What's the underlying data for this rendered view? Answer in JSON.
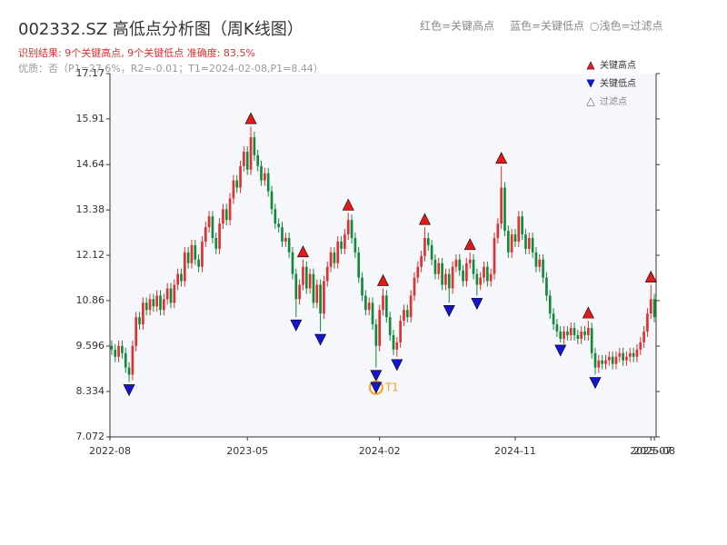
{
  "chart_data": {
    "type": "candlestick",
    "title": "002332.SZ 高低点分析图（周K线图）",
    "result_text": "识别结果: 9个关键高点, 9个关键低点  准确度: 83.5%",
    "subtitle": "优质：否（P1=27.6%，R2=-0.01；T1=2024-02-08,P1=8.44）",
    "header_legend": [
      "红色=关键高点",
      "蓝色=关键低点",
      "○浅色=过滤点"
    ],
    "legend": {
      "position": "upper right",
      "entries": [
        {
          "name": "关键高点",
          "color": "#e31a1c"
        },
        {
          "name": "关键低点",
          "color": "#1515d0"
        },
        {
          "name": "过滤点",
          "color": "#ffffff"
        }
      ]
    },
    "up_color": "#e03030",
    "down_color": "#128a3c",
    "ylim": [
      7.072,
      17.17
    ],
    "yticks": [
      7.072,
      8.334,
      9.596,
      10.86,
      12.12,
      13.38,
      14.64,
      15.91,
      17.17
    ],
    "categories": [
      "2022-08",
      null,
      null,
      null,
      null,
      null,
      null,
      null,
      null,
      null,
      null,
      null,
      null,
      null,
      null,
      null,
      null,
      null,
      null,
      null,
      null,
      null,
      null,
      null,
      null,
      null,
      null,
      null,
      null,
      null,
      null,
      null,
      null,
      null,
      null,
      null,
      null,
      null,
      null,
      "2023-05",
      null,
      null,
      null,
      null,
      null,
      null,
      null,
      null,
      null,
      null,
      null,
      null,
      null,
      null,
      null,
      null,
      null,
      null,
      null,
      null,
      null,
      null,
      null,
      null,
      null,
      null,
      null,
      null,
      null,
      null,
      null,
      null,
      null,
      null,
      null,
      null,
      null,
      "2024-02",
      null,
      null,
      null,
      null,
      null,
      null,
      null,
      null,
      null,
      null,
      null,
      null,
      null,
      null,
      null,
      null,
      null,
      null,
      null,
      null,
      null,
      null,
      null,
      null,
      null,
      null,
      null,
      null,
      null,
      null,
      null,
      null,
      null,
      null,
      null,
      null,
      null,
      null,
      "2024-11",
      null,
      null,
      null,
      null,
      null,
      null,
      null,
      null,
      null,
      null,
      null,
      null,
      null,
      null,
      null,
      null,
      null,
      null,
      null,
      null,
      null,
      null,
      null,
      null,
      null,
      null,
      null,
      null,
      null,
      null,
      null,
      null,
      null,
      null,
      null,
      null,
      null,
      null,
      "2025-07",
      "2025-08"
    ],
    "open": [
      9.6,
      9.5,
      9.3,
      9.6,
      9.4,
      9.0,
      8.8,
      9.6,
      10.4,
      10.2,
      10.8,
      10.6,
      10.9,
      10.7,
      11.0,
      10.6,
      10.9,
      11.2,
      10.8,
      11.3,
      11.6,
      11.4,
      12.2,
      11.9,
      12.4,
      12.0,
      11.8,
      12.5,
      12.9,
      13.2,
      12.6,
      12.3,
      13.0,
      13.4,
      13.1,
      13.7,
      14.2,
      14.0,
      14.6,
      15.0,
      14.5,
      15.4,
      14.9,
      14.6,
      14.2,
      14.4,
      13.9,
      13.4,
      13.0,
      12.9,
      12.5,
      12.6,
      12.2,
      11.6,
      10.9,
      11.3,
      11.8,
      11.2,
      11.6,
      10.8,
      11.3,
      10.5,
      11.4,
      11.8,
      12.2,
      11.9,
      12.5,
      12.3,
      12.7,
      13.1,
      12.6,
      12.2,
      11.5,
      11.0,
      10.6,
      10.8,
      10.2,
      9.6,
      10.6,
      11.0,
      10.4,
      9.9,
      9.5,
      9.7,
      10.3,
      10.6,
      10.4,
      11.0,
      11.5,
      11.8,
      12.1,
      12.6,
      12.4,
      12.0,
      11.6,
      11.9,
      11.3,
      11.6,
      11.2,
      11.8,
      12.0,
      11.7,
      11.4,
      11.9,
      12.0,
      11.6,
      11.3,
      11.5,
      11.8,
      11.4,
      11.6,
      12.6,
      13.0,
      14.0,
      12.8,
      12.2,
      12.7,
      12.5,
      13.2,
      12.7,
      12.3,
      12.6,
      12.2,
      11.8,
      12.0,
      11.5,
      11.0,
      10.5,
      10.2,
      10.0,
      9.8,
      10.0,
      9.9,
      10.1,
      9.9,
      9.8,
      10.0,
      9.9,
      10.1,
      9.4,
      9.0,
      9.2,
      9.1,
      9.2,
      9.3,
      9.1,
      9.3,
      9.4,
      9.2,
      9.3,
      9.4,
      9.3,
      9.5,
      9.7,
      10.0,
      10.5,
      10.9
    ],
    "high": [
      9.75,
      9.65,
      9.75,
      9.75,
      9.55,
      9.15,
      9.75,
      10.55,
      10.55,
      10.95,
      10.95,
      11.05,
      11.05,
      11.15,
      11.15,
      11.05,
      11.35,
      11.35,
      11.45,
      11.75,
      11.75,
      12.35,
      12.35,
      12.55,
      12.55,
      12.15,
      12.65,
      13.05,
      13.35,
      13.35,
      12.75,
      13.15,
      13.55,
      13.55,
      13.85,
      14.35,
      14.35,
      14.75,
      15.15,
      15.15,
      15.7,
      15.55,
      15.05,
      14.75,
      14.55,
      14.55,
      14.05,
      13.55,
      13.15,
      13.05,
      12.75,
      12.75,
      12.35,
      11.75,
      11.45,
      12.0,
      11.95,
      11.75,
      11.75,
      11.45,
      11.45,
      11.55,
      11.95,
      12.35,
      12.35,
      12.65,
      12.65,
      12.85,
      13.3,
      13.25,
      12.75,
      12.35,
      11.65,
      11.15,
      10.95,
      10.95,
      10.35,
      10.75,
      11.2,
      11.15,
      10.55,
      10.05,
      9.85,
      10.45,
      10.75,
      10.75,
      11.15,
      11.65,
      11.95,
      12.25,
      12.9,
      12.75,
      12.55,
      12.15,
      12.05,
      12.05,
      11.75,
      11.75,
      11.95,
      12.15,
      12.15,
      11.85,
      12.05,
      12.2,
      12.15,
      11.75,
      11.65,
      11.95,
      11.95,
      11.75,
      12.75,
      13.15,
      14.6,
      14.15,
      12.95,
      12.85,
      12.85,
      13.35,
      13.35,
      12.85,
      12.75,
      12.75,
      12.35,
      12.15,
      12.15,
      11.65,
      11.15,
      10.65,
      10.35,
      10.15,
      10.15,
      10.15,
      10.25,
      10.25,
      10.05,
      10.15,
      10.15,
      10.3,
      10.25,
      9.55,
      9.35,
      9.35,
      9.35,
      9.45,
      9.45,
      9.45,
      9.55,
      9.55,
      9.45,
      9.55,
      9.55,
      9.65,
      9.85,
      10.15,
      10.65,
      11.3,
      11.05
    ],
    "low": [
      9.35,
      9.15,
      9.15,
      9.25,
      8.85,
      8.6,
      8.65,
      9.45,
      10.05,
      10.05,
      10.45,
      10.45,
      10.55,
      10.55,
      10.45,
      10.45,
      10.75,
      10.65,
      10.65,
      11.15,
      11.25,
      11.25,
      11.75,
      11.75,
      11.85,
      11.65,
      11.65,
      12.35,
      12.75,
      12.45,
      12.15,
      12.15,
      12.85,
      12.95,
      12.95,
      13.55,
      13.85,
      13.85,
      14.45,
      14.35,
      14.35,
      14.75,
      14.45,
      14.05,
      14.05,
      13.75,
      13.25,
      12.85,
      12.75,
      12.35,
      12.35,
      12.05,
      11.45,
      10.4,
      10.75,
      11.15,
      11.05,
      11.05,
      10.65,
      10.65,
      10.0,
      10.35,
      11.25,
      11.65,
      11.75,
      11.75,
      12.15,
      12.15,
      12.55,
      12.45,
      12.05,
      11.35,
      10.85,
      10.45,
      10.45,
      10.05,
      9.0,
      9.45,
      10.45,
      10.25,
      9.75,
      9.35,
      9.3,
      9.55,
      10.15,
      10.25,
      10.25,
      10.85,
      11.35,
      11.65,
      11.95,
      12.25,
      11.85,
      11.45,
      11.45,
      11.15,
      11.15,
      10.8,
      11.05,
      11.65,
      11.55,
      11.25,
      11.25,
      11.75,
      11.45,
      11.0,
      11.15,
      11.35,
      11.25,
      11.25,
      11.45,
      12.45,
      12.85,
      12.65,
      12.05,
      12.05,
      12.35,
      12.35,
      12.55,
      12.15,
      12.15,
      12.05,
      11.65,
      11.65,
      11.35,
      10.85,
      10.35,
      10.05,
      9.85,
      9.7,
      9.65,
      9.75,
      9.75,
      9.75,
      9.65,
      9.65,
      9.75,
      9.75,
      9.25,
      8.8,
      8.85,
      8.95,
      8.95,
      9.05,
      8.95,
      8.95,
      9.15,
      9.05,
      9.05,
      9.15,
      9.15,
      9.15,
      9.35,
      9.55,
      9.85,
      10.35,
      10.25
    ],
    "close": [
      9.5,
      9.3,
      9.6,
      9.4,
      9.0,
      8.8,
      9.6,
      10.4,
      10.2,
      10.8,
      10.6,
      10.9,
      10.7,
      11.0,
      10.6,
      10.9,
      11.2,
      10.8,
      11.3,
      11.6,
      11.4,
      12.2,
      11.9,
      12.4,
      12.0,
      11.8,
      12.5,
      12.9,
      13.2,
      12.6,
      12.3,
      13.0,
      13.4,
      13.1,
      13.7,
      14.2,
      14.0,
      14.6,
      15.0,
      14.5,
      15.4,
      14.9,
      14.6,
      14.2,
      14.4,
      13.9,
      13.4,
      13.0,
      12.9,
      12.5,
      12.6,
      12.2,
      11.6,
      10.9,
      11.3,
      11.8,
      11.2,
      11.6,
      10.8,
      11.3,
      10.5,
      11.4,
      11.8,
      12.2,
      11.9,
      12.5,
      12.3,
      12.7,
      13.1,
      12.6,
      12.2,
      11.5,
      11.0,
      10.6,
      10.8,
      10.2,
      9.6,
      10.6,
      11.0,
      10.4,
      9.9,
      9.5,
      9.7,
      10.3,
      10.6,
      10.4,
      11.0,
      11.5,
      11.8,
      12.1,
      12.6,
      12.4,
      12.0,
      11.6,
      11.9,
      11.3,
      11.6,
      11.2,
      11.8,
      12.0,
      11.7,
      11.4,
      11.9,
      12.0,
      11.6,
      11.3,
      11.5,
      11.8,
      11.4,
      11.6,
      12.6,
      13.0,
      14.0,
      12.8,
      12.2,
      12.7,
      12.5,
      13.2,
      12.7,
      12.3,
      12.6,
      12.2,
      11.8,
      12.0,
      11.5,
      11.0,
      10.5,
      10.2,
      10.0,
      9.8,
      10.0,
      9.9,
      10.1,
      9.9,
      9.8,
      10.0,
      9.9,
      10.1,
      9.4,
      9.0,
      9.2,
      9.1,
      9.2,
      9.3,
      9.1,
      9.3,
      9.4,
      9.2,
      9.3,
      9.4,
      9.3,
      9.5,
      9.7,
      10.0,
      10.5,
      10.9,
      10.4
    ],
    "key_highs": [
      40,
      55,
      68,
      78,
      90,
      103,
      112,
      137,
      155
    ],
    "key_lows": [
      5,
      53,
      60,
      76,
      82,
      97,
      105,
      129,
      139
    ],
    "annotation": {
      "label": "T1",
      "index": 76,
      "value": 8.44,
      "color": "#f5a020"
    }
  }
}
